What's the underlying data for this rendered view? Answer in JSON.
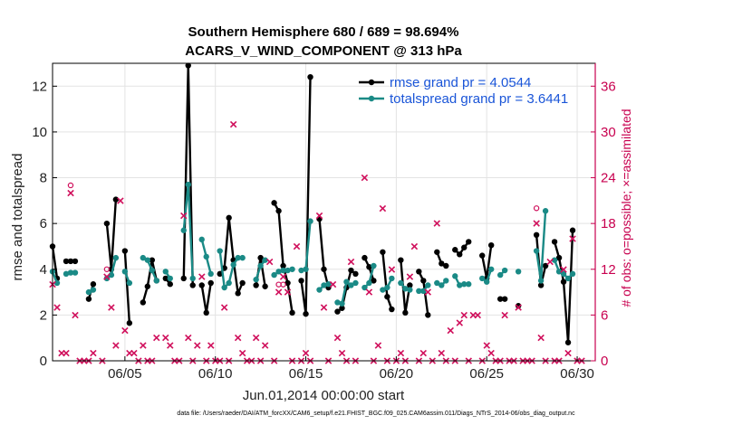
{
  "chart_data": {
    "type": "line",
    "title": "Southern Hemisphere 680 / 689 = 98.694%",
    "subtitle": "ACARS_V_WIND_COMPONENT @ 313 hPa",
    "xlabel": "Jun.01,2014 00:00:00 start",
    "ylabel": "rmse and totalspread",
    "ylabel_right": "# of obs: o=possible; ×=assimilated",
    "xlim": [
      1,
      31
    ],
    "ylim": [
      0,
      13
    ],
    "ylim_right": [
      0,
      39
    ],
    "x_tick_values": [
      5,
      10,
      15,
      20,
      25,
      30
    ],
    "x_tick_labels": [
      "06/05",
      "06/10",
      "06/15",
      "06/20",
      "06/25",
      "06/30"
    ],
    "y_ticks": [
      0,
      2,
      4,
      6,
      8,
      10,
      12
    ],
    "y_ticks_right": [
      0,
      6,
      12,
      18,
      24,
      30,
      36
    ],
    "legend_position": "top-right",
    "series": [
      {
        "name": "rmse grand pr = 4.0544",
        "color": "#000000",
        "segments": [
          [
            [
              1.0,
              5.0
            ],
            [
              1.25,
              3.6
            ]
          ],
          [
            [
              1.75,
              4.35
            ],
            [
              2.0,
              4.35
            ],
            [
              2.25,
              4.35
            ]
          ],
          [
            [
              3.0,
              2.7
            ],
            [
              3.25,
              3.35
            ]
          ],
          [
            [
              4.0,
              6.0
            ],
            [
              4.25,
              4.0
            ],
            [
              4.5,
              7.05
            ]
          ],
          [
            [
              5.0,
              4.8
            ],
            [
              5.25,
              1.65
            ]
          ],
          [
            [
              6.0,
              2.55
            ],
            [
              6.25,
              3.25
            ],
            [
              6.5,
              4.4
            ],
            [
              6.75,
              3.5
            ]
          ],
          [
            [
              7.25,
              3.6
            ],
            [
              7.5,
              3.35
            ]
          ],
          [
            [
              8.25,
              3.6
            ],
            [
              8.5,
              12.9
            ],
            [
              8.75,
              3.3
            ]
          ],
          [
            [
              9.25,
              3.3
            ],
            [
              9.5,
              2.1
            ],
            [
              9.75,
              3.4
            ]
          ],
          [
            [
              10.25,
              3.8
            ],
            [
              10.5,
              4.05
            ],
            [
              10.75,
              6.25
            ],
            [
              11.0,
              4.4
            ],
            [
              11.25,
              2.95
            ],
            [
              11.5,
              3.4
            ]
          ],
          [
            [
              12.25,
              3.3
            ],
            [
              12.5,
              4.5
            ],
            [
              12.75,
              3.25
            ]
          ],
          [
            [
              13.25,
              6.9
            ],
            [
              13.5,
              6.55
            ],
            [
              13.75,
              4.15
            ],
            [
              14.0,
              3.4
            ],
            [
              14.25,
              2.1
            ]
          ],
          [
            [
              14.75,
              3.5
            ],
            [
              15.0,
              2.05
            ],
            [
              15.25,
              12.4
            ]
          ],
          [
            [
              15.75,
              6.2
            ],
            [
              16.0,
              4.0
            ],
            [
              16.25,
              3.2
            ]
          ],
          [
            [
              16.75,
              2.15
            ],
            [
              17.0,
              2.3
            ],
            [
              17.25,
              3.2
            ],
            [
              17.5,
              3.95
            ],
            [
              17.75,
              3.8
            ]
          ],
          [
            [
              18.25,
              4.5
            ],
            [
              18.5,
              4.1
            ],
            [
              18.75,
              3.5
            ]
          ],
          [
            [
              19.25,
              4.75
            ],
            [
              19.5,
              2.8
            ],
            [
              19.75,
              2.25
            ]
          ],
          [
            [
              20.25,
              4.4
            ],
            [
              20.5,
              2.1
            ],
            [
              20.75,
              3.3
            ]
          ],
          [
            [
              21.25,
              3.9
            ],
            [
              21.5,
              3.5
            ],
            [
              21.75,
              2.0
            ]
          ],
          [
            [
              22.25,
              4.75
            ],
            [
              22.5,
              4.25
            ],
            [
              22.75,
              4.15
            ]
          ],
          [
            [
              23.25,
              4.85
            ],
            [
              23.5,
              4.65
            ],
            [
              23.75,
              4.95
            ],
            [
              24.0,
              5.2
            ]
          ],
          [
            [
              24.75,
              4.6
            ],
            [
              25.0,
              3.6
            ],
            [
              25.25,
              5.05
            ]
          ],
          [
            [
              25.75,
              2.7
            ],
            [
              26.0,
              2.7
            ]
          ],
          [
            [
              26.75,
              2.4
            ]
          ],
          [
            [
              27.75,
              5.5
            ],
            [
              28.0,
              3.3
            ],
            [
              28.25,
              4.15
            ]
          ],
          [
            [
              28.75,
              5.2
            ],
            [
              29.0,
              4.5
            ],
            [
              29.25,
              3.45
            ],
            [
              29.5,
              0.8
            ],
            [
              29.75,
              5.7
            ]
          ]
        ]
      },
      {
        "name": "totalspread grand pr = 3.6441",
        "color": "#1a8a86",
        "segments": [
          [
            [
              1.0,
              3.9
            ],
            [
              1.25,
              3.4
            ]
          ],
          [
            [
              1.75,
              3.8
            ],
            [
              2.0,
              3.85
            ],
            [
              2.25,
              3.85
            ]
          ],
          [
            [
              3.0,
              3.0
            ],
            [
              3.25,
              3.1
            ]
          ],
          [
            [
              4.0,
              3.6
            ],
            [
              4.25,
              3.75
            ],
            [
              4.5,
              4.5
            ]
          ],
          [
            [
              5.0,
              3.9
            ],
            [
              5.25,
              3.4
            ]
          ],
          [
            [
              6.0,
              4.5
            ],
            [
              6.25,
              4.4
            ],
            [
              6.5,
              3.95
            ],
            [
              6.75,
              3.5
            ]
          ],
          [
            [
              7.25,
              3.9
            ],
            [
              7.5,
              3.6
            ]
          ],
          [
            [
              8.25,
              5.7
            ],
            [
              8.5,
              7.7
            ],
            [
              8.75,
              3.6
            ]
          ],
          [
            [
              9.25,
              5.3
            ],
            [
              9.5,
              4.55
            ],
            [
              9.75,
              3.8
            ]
          ],
          [
            [
              10.25,
              4.8
            ],
            [
              10.5,
              3.2
            ],
            [
              10.75,
              3.4
            ],
            [
              11.0,
              4.2
            ],
            [
              11.25,
              4.5
            ],
            [
              11.5,
              4.5
            ]
          ],
          [
            [
              12.25,
              3.55
            ],
            [
              12.5,
              4.15
            ],
            [
              12.75,
              4.4
            ]
          ],
          [
            [
              13.25,
              3.75
            ],
            [
              13.5,
              3.9
            ],
            [
              13.75,
              3.95
            ],
            [
              14.0,
              3.95
            ],
            [
              14.25,
              4.0
            ]
          ],
          [
            [
              14.75,
              3.95
            ],
            [
              15.0,
              4.0
            ],
            [
              15.25,
              6.1
            ]
          ],
          [
            [
              15.75,
              3.1
            ],
            [
              16.0,
              3.3
            ],
            [
              16.25,
              3.35
            ]
          ],
          [
            [
              16.75,
              2.55
            ],
            [
              17.0,
              2.5
            ],
            [
              17.25,
              3.45
            ],
            [
              17.5,
              3.3
            ],
            [
              17.75,
              3.4
            ]
          ],
          [
            [
              18.25,
              3.2
            ],
            [
              18.5,
              3.4
            ],
            [
              18.75,
              4.15
            ]
          ],
          [
            [
              19.25,
              3.1
            ],
            [
              19.5,
              3.2
            ],
            [
              19.75,
              3.6
            ]
          ],
          [
            [
              20.25,
              3.4
            ],
            [
              20.5,
              3.15
            ],
            [
              20.75,
              3.1
            ]
          ],
          [
            [
              21.25,
              3.05
            ],
            [
              21.5,
              3.05
            ],
            [
              21.75,
              3.3
            ]
          ],
          [
            [
              22.25,
              3.4
            ],
            [
              22.5,
              3.3
            ],
            [
              22.75,
              3.5
            ]
          ],
          [
            [
              23.25,
              3.7
            ],
            [
              23.5,
              3.3
            ],
            [
              23.75,
              3.35
            ],
            [
              24.0,
              3.35
            ]
          ],
          [
            [
              24.75,
              3.6
            ],
            [
              25.0,
              3.45
            ],
            [
              25.25,
              4.0
            ]
          ],
          [
            [
              25.75,
              3.75
            ],
            [
              26.0,
              3.95
            ]
          ],
          [
            [
              26.75,
              3.9
            ]
          ],
          [
            [
              27.75,
              4.8
            ],
            [
              28.0,
              3.5
            ],
            [
              28.25,
              6.55
            ]
          ],
          [
            [
              28.75,
              4.4
            ],
            [
              29.0,
              3.9
            ],
            [
              29.25,
              3.8
            ],
            [
              29.5,
              3.6
            ],
            [
              29.75,
              3.8
            ]
          ]
        ]
      }
    ],
    "obs_assimilated": {
      "name": "# assimilated",
      "marker": "×",
      "color": "#d0105c",
      "points": [
        [
          1.0,
          10
        ],
        [
          1.25,
          7
        ],
        [
          1.5,
          1
        ],
        [
          1.75,
          1
        ],
        [
          2.0,
          22
        ],
        [
          2.25,
          6
        ],
        [
          2.5,
          0
        ],
        [
          2.75,
          0
        ],
        [
          3.0,
          0
        ],
        [
          3.25,
          1
        ],
        [
          3.75,
          0
        ],
        [
          4.0,
          11
        ],
        [
          4.25,
          7
        ],
        [
          4.5,
          2
        ],
        [
          4.75,
          21
        ],
        [
          5.0,
          4
        ],
        [
          5.25,
          1
        ],
        [
          5.5,
          1
        ],
        [
          5.75,
          0
        ],
        [
          6.0,
          2
        ],
        [
          6.25,
          0
        ],
        [
          6.5,
          0
        ],
        [
          6.75,
          3
        ],
        [
          7.25,
          3
        ],
        [
          7.5,
          2
        ],
        [
          7.75,
          0
        ],
        [
          8.0,
          0
        ],
        [
          8.25,
          19
        ],
        [
          8.5,
          3
        ],
        [
          8.75,
          0
        ],
        [
          9.0,
          2
        ],
        [
          9.25,
          11
        ],
        [
          9.5,
          0
        ],
        [
          9.75,
          2
        ],
        [
          10.0,
          0
        ],
        [
          10.25,
          0
        ],
        [
          10.5,
          7
        ],
        [
          10.75,
          0
        ],
        [
          11.0,
          31
        ],
        [
          11.25,
          3
        ],
        [
          11.5,
          1
        ],
        [
          11.75,
          0
        ],
        [
          12.0,
          0
        ],
        [
          12.25,
          3
        ],
        [
          12.5,
          0
        ],
        [
          12.75,
          2
        ],
        [
          13.0,
          13
        ],
        [
          13.25,
          0
        ],
        [
          13.5,
          9
        ],
        [
          13.75,
          11
        ],
        [
          14.0,
          9
        ],
        [
          14.25,
          0
        ],
        [
          14.5,
          15
        ],
        [
          14.75,
          0
        ],
        [
          15.0,
          1
        ],
        [
          15.25,
          0
        ],
        [
          15.75,
          19
        ],
        [
          16.0,
          7
        ],
        [
          16.25,
          0
        ],
        [
          16.5,
          10
        ],
        [
          16.75,
          3
        ],
        [
          17.0,
          1
        ],
        [
          17.25,
          0
        ],
        [
          17.5,
          13
        ],
        [
          17.75,
          0
        ],
        [
          18.25,
          24
        ],
        [
          18.5,
          9
        ],
        [
          18.75,
          0
        ],
        [
          19.0,
          2
        ],
        [
          19.25,
          20
        ],
        [
          19.5,
          0
        ],
        [
          19.75,
          12
        ],
        [
          20.0,
          0
        ],
        [
          20.25,
          1
        ],
        [
          20.5,
          0
        ],
        [
          20.75,
          11
        ],
        [
          21.0,
          15
        ],
        [
          21.25,
          0
        ],
        [
          21.5,
          1
        ],
        [
          21.75,
          9
        ],
        [
          22.0,
          0
        ],
        [
          22.25,
          18
        ],
        [
          22.5,
          1
        ],
        [
          22.75,
          0
        ],
        [
          23.0,
          4
        ],
        [
          23.25,
          0
        ],
        [
          23.5,
          5
        ],
        [
          23.75,
          6
        ],
        [
          24.0,
          0
        ],
        [
          24.25,
          6
        ],
        [
          24.5,
          6
        ],
        [
          24.75,
          0
        ],
        [
          25.0,
          2
        ],
        [
          25.25,
          1
        ],
        [
          25.5,
          0
        ],
        [
          25.75,
          0
        ],
        [
          26.0,
          6
        ],
        [
          26.25,
          0
        ],
        [
          26.5,
          0
        ],
        [
          26.75,
          7
        ],
        [
          27.0,
          0
        ],
        [
          27.25,
          0
        ],
        [
          27.5,
          0
        ],
        [
          27.75,
          18
        ],
        [
          28.0,
          3
        ],
        [
          28.25,
          0
        ],
        [
          28.5,
          13
        ],
        [
          28.75,
          0
        ],
        [
          29.0,
          0
        ],
        [
          29.25,
          12
        ],
        [
          29.5,
          1
        ],
        [
          29.75,
          16
        ],
        [
          30.0,
          0
        ],
        [
          30.25,
          0
        ]
      ]
    },
    "obs_possible": {
      "name": "# possible",
      "marker": "o",
      "color": "#d0105c",
      "points": [
        [
          2.0,
          23
        ],
        [
          4.0,
          12
        ],
        [
          13.5,
          10
        ],
        [
          13.75,
          10
        ],
        [
          27.75,
          20
        ]
      ]
    }
  },
  "footer_text": "data file: /Users/raeder/DAI/ATM_forcXX/CAM6_setup/f.e21.FHIST_BGC.f09_025.CAM6assim.011/Diags_NTrS_2014-06/obs_diag_output.nc"
}
